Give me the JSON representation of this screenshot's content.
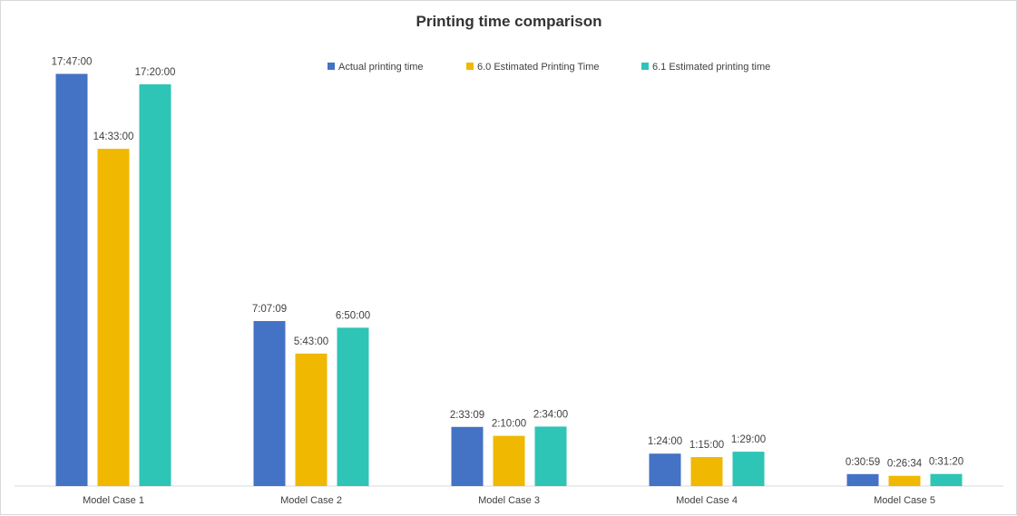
{
  "chart_data": {
    "type": "bar",
    "title": "Printing time comparison",
    "xlabel": "",
    "ylabel": "",
    "categories": [
      "Model Case 1",
      "Model Case 2",
      "Model Case 3",
      "Model Case 4",
      "Model Case 5"
    ],
    "series": [
      {
        "name": "Actual printing time",
        "color": "#4472C4",
        "values": [
          64020,
          25629,
          9189,
          5040,
          1859
        ],
        "labels": [
          "17:47:00",
          "7:07:09",
          "2:33:09",
          "1:24:00",
          "0:30:59"
        ]
      },
      {
        "name": "6.0 Estimated Printing Time",
        "color": "#F0B800",
        "values": [
          52380,
          20580,
          7800,
          4500,
          1594
        ],
        "labels": [
          "14:33:00",
          "5:43:00",
          "2:10:00",
          "1:15:00",
          "0:26:34"
        ]
      },
      {
        "name": "6.1 Estimated printing time",
        "color": "#2EC4B6",
        "values": [
          62400,
          24600,
          9240,
          5340,
          1880
        ],
        "labels": [
          "17:20:00",
          "6:50:00",
          "2:34:00",
          "1:29:00",
          "0:31:20"
        ]
      }
    ],
    "ylim": [
      0,
      70000
    ],
    "grid": false,
    "legend": "top"
  }
}
